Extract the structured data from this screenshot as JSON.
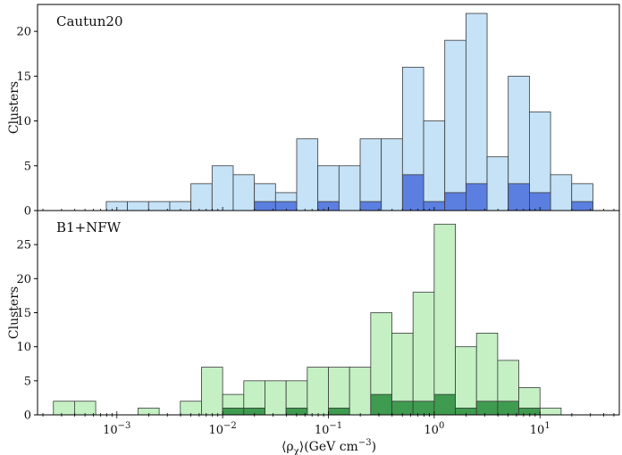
{
  "chart_data": [
    {
      "type": "bar",
      "panel_label": "Cautun20",
      "ylabel": "Clusters",
      "ylim": [
        0,
        23
      ],
      "yticks": [
        0,
        5,
        10,
        15,
        20
      ],
      "xscale": "log",
      "xlim_log10": [
        -3.75,
        1.75
      ],
      "bin_edges_log10": [
        -3.1,
        -2.9,
        -2.7,
        -2.5,
        -2.3,
        -2.1,
        -1.9,
        -1.7,
        -1.5,
        -1.3,
        -1.1,
        -0.9,
        -0.7,
        -0.5,
        -0.3,
        -0.1,
        0.1,
        0.3,
        0.5,
        0.7,
        0.9,
        1.1,
        1.3,
        1.5
      ],
      "colors": {
        "all": "#c5e2f7",
        "subset": "#5b7fe0"
      },
      "series": [
        {
          "key": "all",
          "values": [
            1,
            1,
            1,
            1,
            3,
            5,
            4,
            3,
            2,
            8,
            5,
            5,
            8,
            8,
            16,
            10,
            19,
            22,
            6,
            15,
            11,
            4,
            3
          ]
        },
        {
          "key": "subset",
          "values": [
            0,
            0,
            0,
            0,
            0,
            0,
            0,
            1,
            1,
            0,
            1,
            0,
            1,
            0,
            4,
            1,
            2,
            3,
            0,
            3,
            2,
            0,
            1
          ]
        }
      ]
    },
    {
      "type": "bar",
      "panel_label": "B1+NFW",
      "ylabel": "Clusters",
      "ylim": [
        0,
        30
      ],
      "yticks": [
        0,
        5,
        10,
        15,
        20,
        25
      ],
      "xscale": "log",
      "xlim_log10": [
        -3.75,
        1.75
      ],
      "xticks_log10": [
        -3,
        -2,
        -1,
        0,
        1
      ],
      "xtick_labels": [
        [
          "10",
          "−3"
        ],
        [
          "10",
          "−2"
        ],
        [
          "10",
          "−1"
        ],
        [
          "10",
          "0"
        ],
        [
          "10",
          "1"
        ]
      ],
      "bin_edges_log10": [
        -3.6,
        -3.4,
        -3.2,
        -3.0,
        -2.8,
        -2.6,
        -2.4,
        -2.2,
        -2.0,
        -1.8,
        -1.6,
        -1.4,
        -1.2,
        -1.0,
        -0.8,
        -0.6,
        -0.4,
        -0.2,
        0.0,
        0.2,
        0.4,
        0.6,
        0.8,
        1.0,
        1.2,
        1.4
      ],
      "colors": {
        "all": "#c4f0c4",
        "subset": "#3f9b4f"
      },
      "series": [
        {
          "key": "all",
          "values": [
            2,
            2,
            0,
            0,
            1,
            0,
            2,
            7,
            3,
            5,
            5,
            5,
            7,
            7,
            7,
            15,
            12,
            18,
            28,
            10,
            12,
            8,
            4,
            1,
            0
          ]
        },
        {
          "key": "subset",
          "values": [
            0,
            0,
            0,
            0,
            0,
            0,
            0,
            0,
            1,
            1,
            0,
            1,
            0,
            1,
            0,
            3,
            2,
            2,
            3,
            1,
            2,
            2,
            1,
            0,
            0
          ]
        }
      ]
    }
  ],
  "xlabel": {
    "prefix": "⟨ρ",
    "sub": "χ",
    "suffix": "⟩(GeV cm",
    "sup": "−3",
    "end": ")"
  }
}
